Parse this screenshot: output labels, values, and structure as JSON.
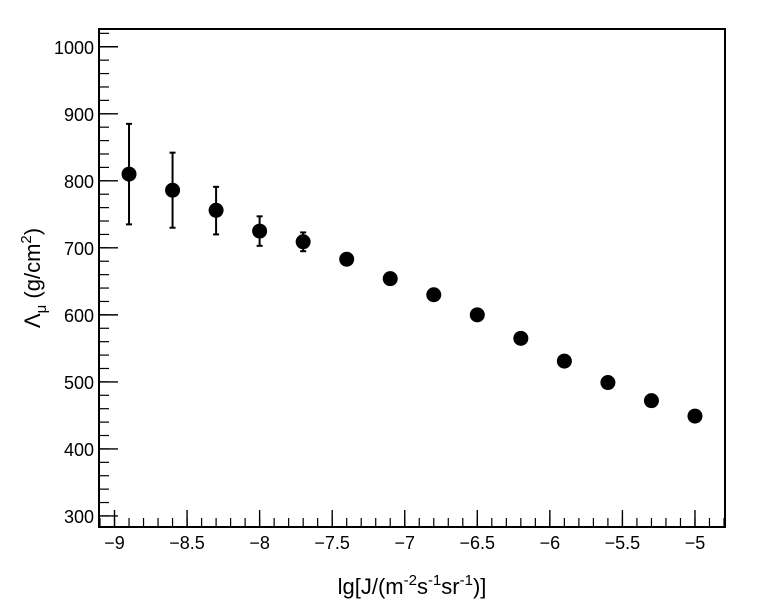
{
  "chart_data": {
    "type": "scatter",
    "xlabel": {
      "base": "lg[J/(m",
      "sup1": "-2",
      "mid1": "s",
      "sup2": "-1",
      "mid2": "sr",
      "sup3": "-1",
      "tail": ")]"
    },
    "ylabel": {
      "symbol": "Λ",
      "sub": "μ",
      "unit_pre": " (g/cm",
      "unit_sup": "2",
      "unit_post": ")"
    },
    "xlim": [
      -9.1,
      -4.8
    ],
    "ylim": [
      285,
      1025
    ],
    "x_ticks": [
      {
        "value": -9,
        "label": "−9"
      },
      {
        "value": -8.5,
        "label": "−8.5"
      },
      {
        "value": -8,
        "label": "−8"
      },
      {
        "value": -7.5,
        "label": "−7.5"
      },
      {
        "value": -7,
        "label": "−7"
      },
      {
        "value": -6.5,
        "label": "−6.5"
      },
      {
        "value": -6,
        "label": "−6"
      },
      {
        "value": -5.5,
        "label": "−5.5"
      },
      {
        "value": -5,
        "label": "−5"
      }
    ],
    "y_ticks": [
      {
        "value": 300,
        "label": "300"
      },
      {
        "value": 400,
        "label": "400"
      },
      {
        "value": 500,
        "label": "500"
      },
      {
        "value": 600,
        "label": "600"
      },
      {
        "value": 700,
        "label": "700"
      },
      {
        "value": 800,
        "label": "800"
      },
      {
        "value": 900,
        "label": "900"
      },
      {
        "value": 1000,
        "label": "1000"
      }
    ],
    "x_minor_step": 0.1,
    "y_minor_step": 20,
    "grid": false,
    "series": [
      {
        "marker_color": "#000000",
        "points": [
          {
            "x": -8.9,
            "y": 810,
            "err_lo": 75,
            "err_hi": 75
          },
          {
            "x": -8.6,
            "y": 786,
            "err_lo": 56,
            "err_hi": 56
          },
          {
            "x": -8.3,
            "y": 756,
            "err_lo": 36,
            "err_hi": 35
          },
          {
            "x": -8.0,
            "y": 725,
            "err_lo": 22,
            "err_hi": 22
          },
          {
            "x": -7.7,
            "y": 709,
            "err_lo": 14,
            "err_hi": 14
          },
          {
            "x": -7.4,
            "y": 683,
            "err_lo": 0,
            "err_hi": 0
          },
          {
            "x": -7.1,
            "y": 654,
            "err_lo": 0,
            "err_hi": 0
          },
          {
            "x": -6.8,
            "y": 630,
            "err_lo": 0,
            "err_hi": 0
          },
          {
            "x": -6.5,
            "y": 600,
            "err_lo": 0,
            "err_hi": 0
          },
          {
            "x": -6.2,
            "y": 565,
            "err_lo": 0,
            "err_hi": 0
          },
          {
            "x": -5.9,
            "y": 531,
            "err_lo": 0,
            "err_hi": 0
          },
          {
            "x": -5.6,
            "y": 499,
            "err_lo": 0,
            "err_hi": 0
          },
          {
            "x": -5.3,
            "y": 472,
            "err_lo": 0,
            "err_hi": 0
          },
          {
            "x": -5.0,
            "y": 449,
            "err_lo": 0,
            "err_hi": 0
          }
        ]
      }
    ]
  }
}
